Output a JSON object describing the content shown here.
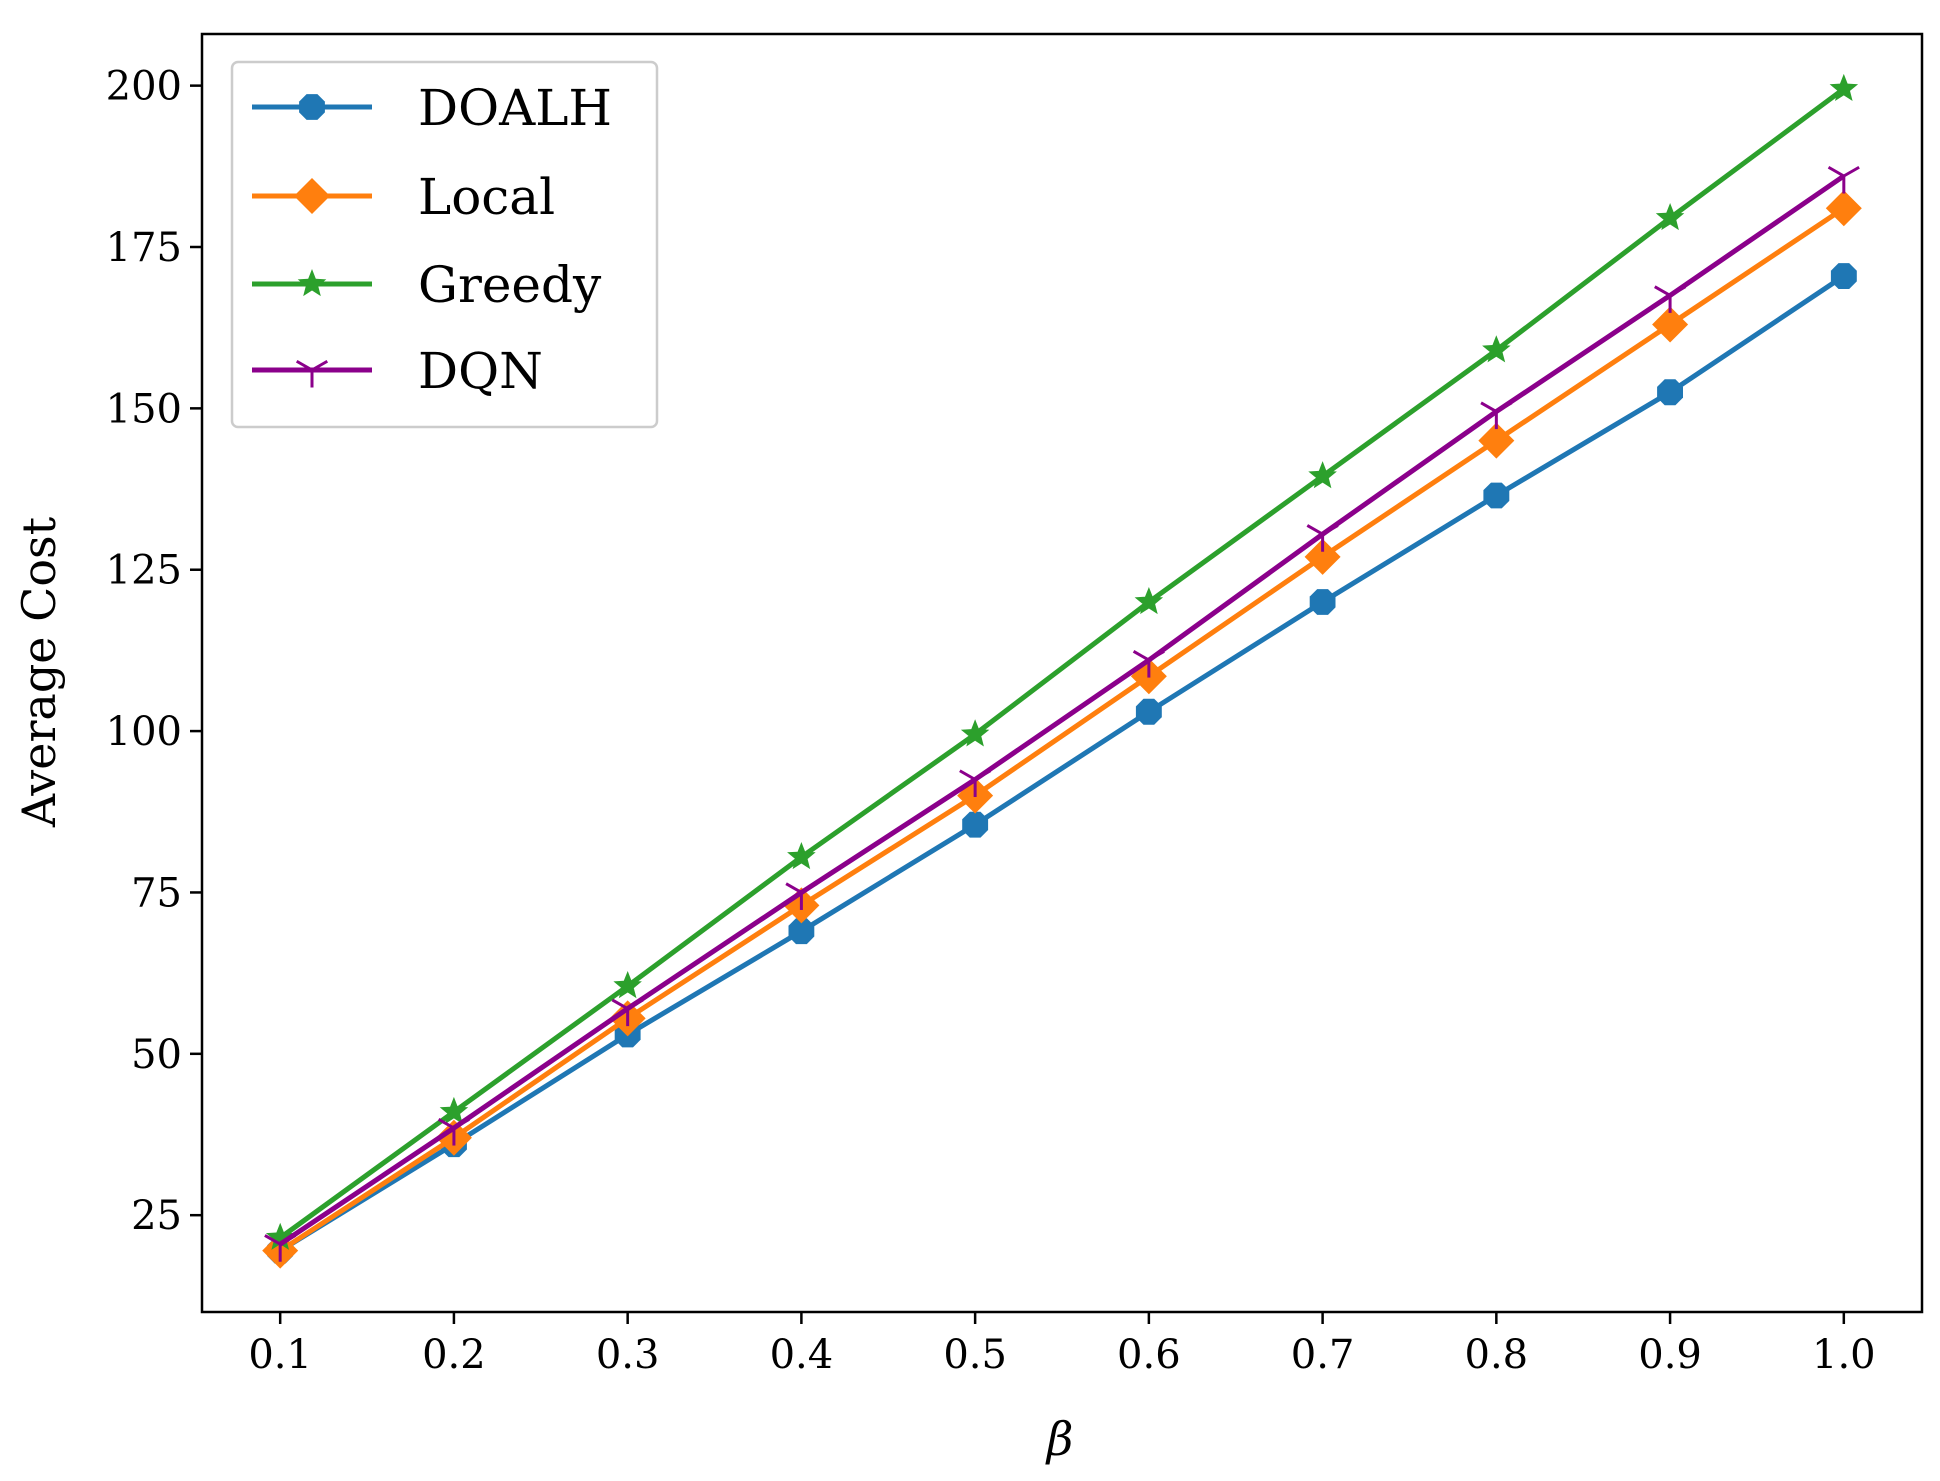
{
  "chart_data": {
    "type": "line",
    "title": "",
    "xlabel": "β",
    "ylabel": "Average Cost",
    "x": [
      0.1,
      0.2,
      0.3,
      0.4,
      0.5,
      0.6,
      0.7,
      0.8,
      0.9,
      1.0
    ],
    "x_tick_labels": [
      "0.1",
      "0.2",
      "0.3",
      "0.4",
      "0.5",
      "0.6",
      "0.7",
      "0.8",
      "0.9",
      "1.0"
    ],
    "y_ticks": [
      25,
      50,
      75,
      100,
      125,
      150,
      175,
      200
    ],
    "y_tick_labels": [
      "25",
      "50",
      "75",
      "100",
      "125",
      "150",
      "175",
      "200"
    ],
    "xlim": [
      0.055,
      1.045
    ],
    "ylim": [
      10,
      208
    ],
    "grid": false,
    "legend_position": "top-left",
    "series": [
      {
        "name": "DOALH",
        "color": "#1f77b4",
        "marker": "octagon",
        "values": [
          19.5,
          36,
          53,
          69,
          85.5,
          103,
          120,
          136.5,
          152.5,
          170.5
        ]
      },
      {
        "name": "Local",
        "color": "#ff7f0e",
        "marker": "diamond",
        "values": [
          19.5,
          37,
          55.5,
          73,
          90,
          108.5,
          127,
          145,
          163,
          181
        ]
      },
      {
        "name": "Greedy",
        "color": "#2ca02c",
        "marker": "star",
        "values": [
          21.5,
          41,
          60.5,
          80.5,
          99.5,
          120,
          139.5,
          159,
          179.5,
          199.5
        ]
      },
      {
        "name": "DQN",
        "color": "#8b008b",
        "marker": "tri-down",
        "values": [
          20.5,
          38.5,
          57,
          75,
          92.5,
          111,
          130.5,
          149.5,
          167.5,
          186
        ]
      }
    ]
  }
}
